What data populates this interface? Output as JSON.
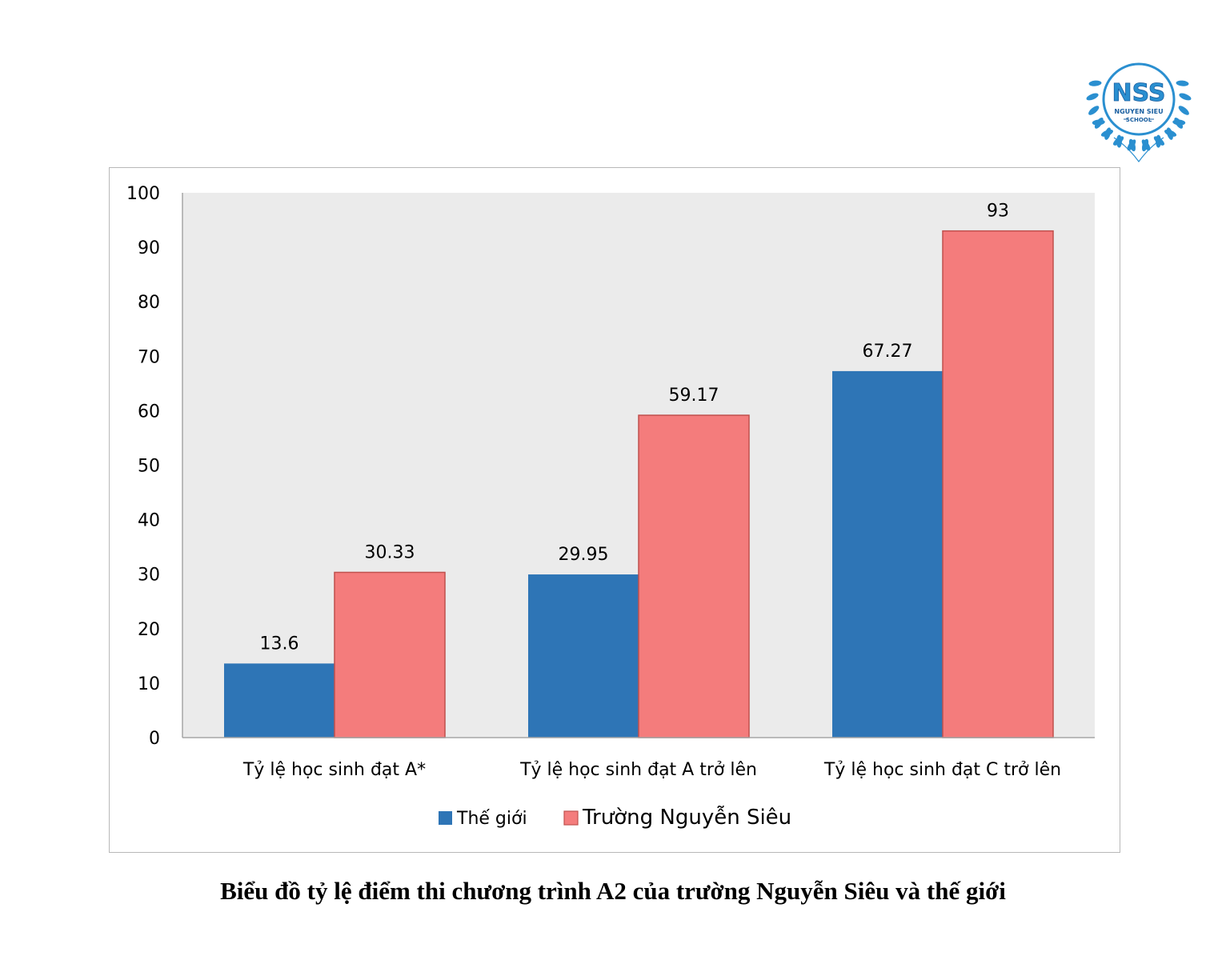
{
  "logo": {
    "mark": "NSS",
    "name": "NGUYEN SIEU",
    "sub": "SCHOOL",
    "color": "#2a8fd0"
  },
  "caption": "Biểu đồ tỷ lệ điểm thi chương trình A2 của trường Nguyễn Siêu và thế giới",
  "chart_data": {
    "type": "bar",
    "title": "",
    "xlabel": "",
    "ylabel": "",
    "ylim": [
      0,
      100
    ],
    "yticks": [
      "0",
      "10",
      "20",
      "30",
      "40",
      "50",
      "60",
      "70",
      "80",
      "90",
      "100"
    ],
    "categories": [
      "Tỷ lệ học sinh đạt A*",
      "Tỷ lệ học sinh đạt A trở lên",
      "Tỷ lệ học sinh đạt C trở lên"
    ],
    "series": [
      {
        "name": "Thế giới",
        "values": [
          13.6,
          29.95,
          67.27
        ],
        "labels": [
          "13.6",
          "29.95",
          "67.27"
        ],
        "color": "#2e75b6"
      },
      {
        "name": "Trường Nguyễn Siêu",
        "values": [
          30.33,
          59.17,
          93
        ],
        "labels": [
          "30.33",
          "59.17",
          "93"
        ],
        "color": "#f47c7c",
        "edge": "#c0504d"
      }
    ],
    "plot_background": "#ebebeb",
    "grid": false,
    "legend_position": "bottom"
  }
}
